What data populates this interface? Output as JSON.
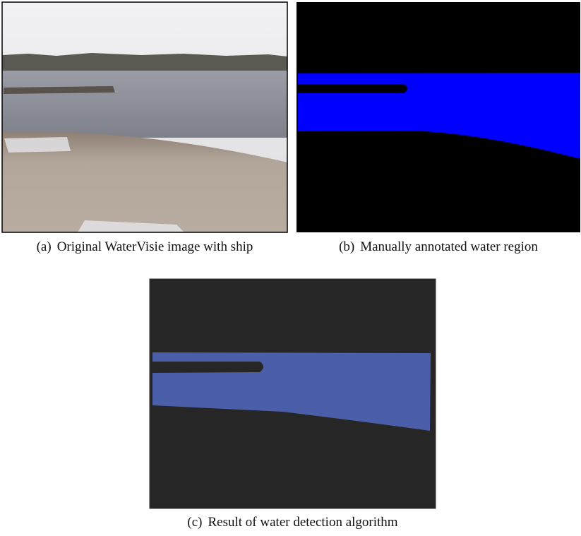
{
  "figures": [
    {
      "label": "(a)",
      "caption": "Original WaterVisie image with ship"
    },
    {
      "label": "(b)",
      "caption": "Manually annotated water region"
    },
    {
      "label": "(c)",
      "caption": "Result of water detection algorithm"
    }
  ]
}
